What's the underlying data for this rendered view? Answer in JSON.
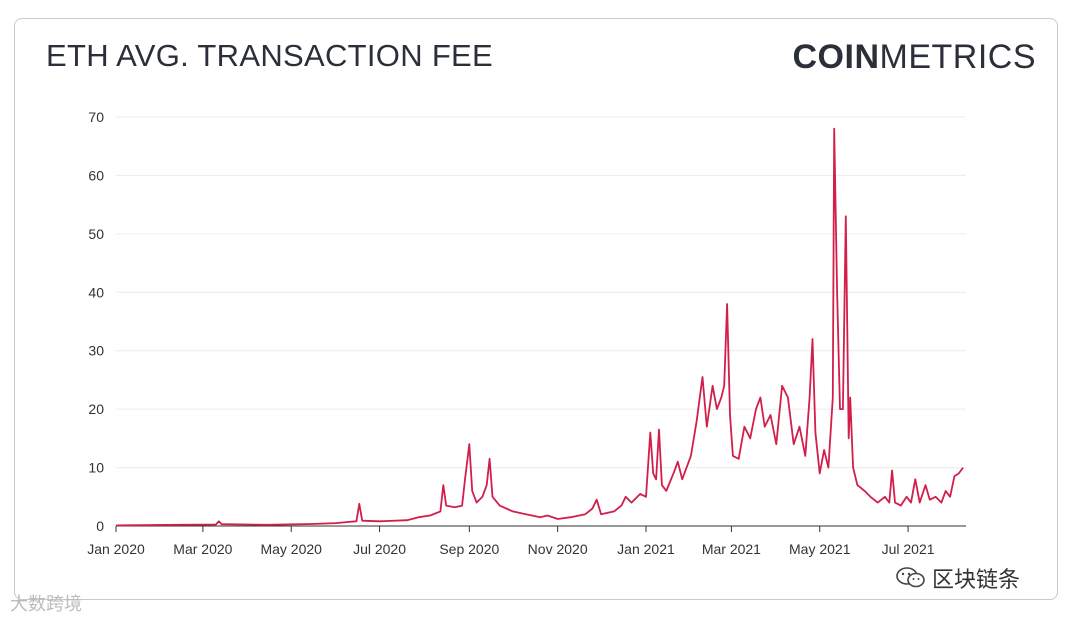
{
  "header": {
    "title": "ETH AVG. TRANSACTION FEE",
    "brand_bold": "COIN",
    "brand_light": "METRICS"
  },
  "watermarks": {
    "left": "大数跨境",
    "right": "区块链条"
  },
  "colors": {
    "line": "#d21f4a",
    "grid": "#ececec",
    "text": "#2b2f3a",
    "axis": "#333333"
  },
  "chart_data": {
    "type": "line",
    "title": "ETH AVG. TRANSACTION FEE",
    "xlabel": "",
    "ylabel": "",
    "ylim": [
      0,
      70
    ],
    "xlim": [
      "2020-01-01",
      "2021-08-10"
    ],
    "yticks": [
      0,
      10,
      20,
      30,
      40,
      50,
      60,
      70
    ],
    "xticks": [
      {
        "date": "2020-01-01",
        "label": "Jan 2020"
      },
      {
        "date": "2020-03-01",
        "label": "Mar 2020"
      },
      {
        "date": "2020-05-01",
        "label": "May 2020"
      },
      {
        "date": "2020-07-01",
        "label": "Jul 2020"
      },
      {
        "date": "2020-09-01",
        "label": "Sep 2020"
      },
      {
        "date": "2020-11-01",
        "label": "Nov 2020"
      },
      {
        "date": "2021-01-01",
        "label": "Jan 2021"
      },
      {
        "date": "2021-03-01",
        "label": "Mar 2021"
      },
      {
        "date": "2021-05-01",
        "label": "May 2021"
      },
      {
        "date": "2021-07-01",
        "label": "Jul 2021"
      }
    ],
    "grid": true,
    "legend": "none",
    "series": [
      {
        "points": [
          [
            "2020-01-01",
            0.1
          ],
          [
            "2020-02-15",
            0.2
          ],
          [
            "2020-03-10",
            0.25
          ],
          [
            "2020-03-12",
            0.8
          ],
          [
            "2020-03-14",
            0.3
          ],
          [
            "2020-04-15",
            0.2
          ],
          [
            "2020-05-15",
            0.35
          ],
          [
            "2020-06-01",
            0.5
          ],
          [
            "2020-06-10",
            0.7
          ],
          [
            "2020-06-15",
            0.8
          ],
          [
            "2020-06-17",
            3.8
          ],
          [
            "2020-06-19",
            0.9
          ],
          [
            "2020-07-01",
            0.8
          ],
          [
            "2020-07-20",
            1.0
          ],
          [
            "2020-07-28",
            1.5
          ],
          [
            "2020-08-05",
            1.8
          ],
          [
            "2020-08-12",
            2.5
          ],
          [
            "2020-08-14",
            7.0
          ],
          [
            "2020-08-16",
            3.5
          ],
          [
            "2020-08-22",
            3.2
          ],
          [
            "2020-08-27",
            3.5
          ],
          [
            "2020-08-29",
            8.0
          ],
          [
            "2020-09-01",
            14.0
          ],
          [
            "2020-09-03",
            6.0
          ],
          [
            "2020-09-06",
            4.0
          ],
          [
            "2020-09-10",
            5.0
          ],
          [
            "2020-09-13",
            7.0
          ],
          [
            "2020-09-15",
            11.5
          ],
          [
            "2020-09-17",
            5.0
          ],
          [
            "2020-09-22",
            3.5
          ],
          [
            "2020-10-01",
            2.5
          ],
          [
            "2020-10-10",
            2.0
          ],
          [
            "2020-10-20",
            1.5
          ],
          [
            "2020-10-25",
            1.8
          ],
          [
            "2020-11-01",
            1.2
          ],
          [
            "2020-11-10",
            1.5
          ],
          [
            "2020-11-20",
            2.0
          ],
          [
            "2020-11-25",
            3.0
          ],
          [
            "2020-11-28",
            4.5
          ],
          [
            "2020-12-01",
            2.0
          ],
          [
            "2020-12-10",
            2.5
          ],
          [
            "2020-12-15",
            3.5
          ],
          [
            "2020-12-18",
            5.0
          ],
          [
            "2020-12-22",
            4.0
          ],
          [
            "2020-12-28",
            5.5
          ],
          [
            "2021-01-01",
            5.0
          ],
          [
            "2021-01-04",
            16.0
          ],
          [
            "2021-01-06",
            9.0
          ],
          [
            "2021-01-08",
            8.0
          ],
          [
            "2021-01-10",
            16.5
          ],
          [
            "2021-01-12",
            7.0
          ],
          [
            "2021-01-15",
            6.0
          ],
          [
            "2021-01-20",
            9.0
          ],
          [
            "2021-01-23",
            11.0
          ],
          [
            "2021-01-26",
            8.0
          ],
          [
            "2021-02-01",
            12.0
          ],
          [
            "2021-02-05",
            18.0
          ],
          [
            "2021-02-09",
            25.5
          ],
          [
            "2021-02-12",
            17.0
          ],
          [
            "2021-02-16",
            24.0
          ],
          [
            "2021-02-19",
            20.0
          ],
          [
            "2021-02-22",
            22.0
          ],
          [
            "2021-02-24",
            24.0
          ],
          [
            "2021-02-26",
            38.0
          ],
          [
            "2021-02-28",
            19.0
          ],
          [
            "2021-03-02",
            12.0
          ],
          [
            "2021-03-06",
            11.5
          ],
          [
            "2021-03-10",
            17.0
          ],
          [
            "2021-03-14",
            15.0
          ],
          [
            "2021-03-18",
            20.0
          ],
          [
            "2021-03-21",
            22.0
          ],
          [
            "2021-03-24",
            17.0
          ],
          [
            "2021-03-28",
            19.0
          ],
          [
            "2021-04-01",
            14.0
          ],
          [
            "2021-04-05",
            24.0
          ],
          [
            "2021-04-09",
            22.0
          ],
          [
            "2021-04-13",
            14.0
          ],
          [
            "2021-04-17",
            17.0
          ],
          [
            "2021-04-21",
            12.0
          ],
          [
            "2021-04-24",
            22.0
          ],
          [
            "2021-04-26",
            32.0
          ],
          [
            "2021-04-28",
            16.0
          ],
          [
            "2021-05-01",
            9.0
          ],
          [
            "2021-05-04",
            13.0
          ],
          [
            "2021-05-07",
            10.0
          ],
          [
            "2021-05-10",
            22.0
          ],
          [
            "2021-05-11",
            68.0
          ],
          [
            "2021-05-13",
            40.0
          ],
          [
            "2021-05-15",
            20.0
          ],
          [
            "2021-05-17",
            20.0
          ],
          [
            "2021-05-19",
            53.0
          ],
          [
            "2021-05-21",
            15.0
          ],
          [
            "2021-05-22",
            22.0
          ],
          [
            "2021-05-24",
            10.0
          ],
          [
            "2021-05-27",
            7.0
          ],
          [
            "2021-06-01",
            6.0
          ],
          [
            "2021-06-05",
            5.0
          ],
          [
            "2021-06-10",
            4.0
          ],
          [
            "2021-06-15",
            5.0
          ],
          [
            "2021-06-18",
            4.0
          ],
          [
            "2021-06-20",
            9.5
          ],
          [
            "2021-06-22",
            4.0
          ],
          [
            "2021-06-26",
            3.5
          ],
          [
            "2021-06-30",
            5.0
          ],
          [
            "2021-07-03",
            4.0
          ],
          [
            "2021-07-06",
            8.0
          ],
          [
            "2021-07-09",
            4.0
          ],
          [
            "2021-07-13",
            7.0
          ],
          [
            "2021-07-16",
            4.5
          ],
          [
            "2021-07-20",
            5.0
          ],
          [
            "2021-07-24",
            4.0
          ],
          [
            "2021-07-27",
            6.0
          ],
          [
            "2021-07-30",
            5.0
          ],
          [
            "2021-08-02",
            8.5
          ],
          [
            "2021-08-05",
            9.0
          ],
          [
            "2021-08-08",
            10.0
          ]
        ]
      }
    ]
  }
}
